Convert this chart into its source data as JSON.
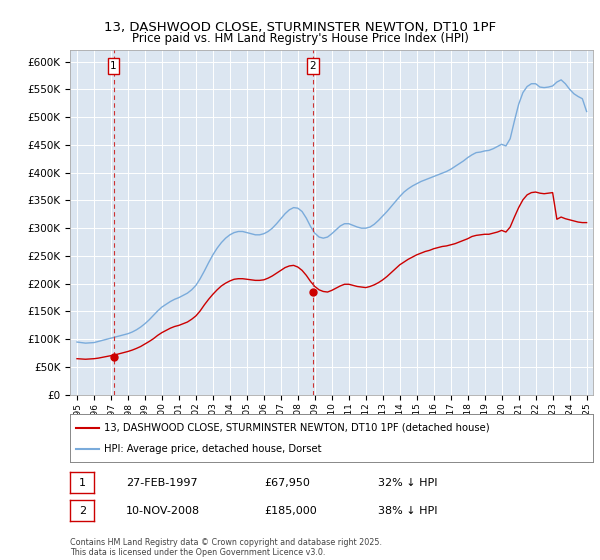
{
  "title": "13, DASHWOOD CLOSE, STURMINSTER NEWTON, DT10 1PF",
  "subtitle": "Price paid vs. HM Land Registry's House Price Index (HPI)",
  "ylim": [
    0,
    620000
  ],
  "yticks": [
    0,
    50000,
    100000,
    150000,
    200000,
    250000,
    300000,
    350000,
    400000,
    450000,
    500000,
    550000,
    600000
  ],
  "ytick_labels": [
    "£0",
    "£50K",
    "£100K",
    "£150K",
    "£200K",
    "£250K",
    "£300K",
    "£350K",
    "£400K",
    "£450K",
    "£500K",
    "£550K",
    "£600K"
  ],
  "xlim_start": 1994.6,
  "xlim_end": 2025.4,
  "plot_bg_color": "#dce6f1",
  "grid_color": "#ffffff",
  "sale1_x": 1997.15,
  "sale1_y": 67950,
  "sale1_label": "1",
  "sale1_date": "27-FEB-1997",
  "sale1_price": "£67,950",
  "sale1_hpi": "32% ↓ HPI",
  "sale2_x": 2008.87,
  "sale2_y": 185000,
  "sale2_label": "2",
  "sale2_date": "10-NOV-2008",
  "sale2_price": "£185,000",
  "sale2_hpi": "38% ↓ HPI",
  "line1_color": "#cc0000",
  "line2_color": "#7aabdb",
  "marker_color": "#cc0000",
  "dashed_color": "#cc3333",
  "legend1": "13, DASHWOOD CLOSE, STURMINSTER NEWTON, DT10 1PF (detached house)",
  "legend2": "HPI: Average price, detached house, Dorset",
  "footer": "Contains HM Land Registry data © Crown copyright and database right 2025.\nThis data is licensed under the Open Government Licence v3.0.",
  "hpi_y": [
    95000,
    94000,
    93000,
    93500,
    94000,
    96000,
    98000,
    100000,
    102000,
    104000,
    106000,
    108000,
    110000,
    113000,
    117000,
    122000,
    128000,
    135000,
    143000,
    151000,
    158000,
    163000,
    168000,
    172000,
    175000,
    179000,
    183000,
    189000,
    197000,
    209000,
    223000,
    238000,
    252000,
    264000,
    274000,
    282000,
    288000,
    292000,
    294000,
    294000,
    292000,
    290000,
    288000,
    288000,
    290000,
    294000,
    300000,
    308000,
    317000,
    326000,
    333000,
    337000,
    336000,
    330000,
    318000,
    303000,
    291000,
    284000,
    282000,
    284000,
    290000,
    297000,
    304000,
    308000,
    308000,
    305000,
    302000,
    300000,
    300000,
    302000,
    307000,
    314000,
    322000,
    330000,
    339000,
    348000,
    357000,
    365000,
    371000,
    376000,
    380000,
    384000,
    387000,
    390000,
    393000,
    396000,
    399000,
    402000,
    406000,
    411000,
    416000,
    421000,
    427000,
    432000,
    436000,
    437000,
    439000,
    440000,
    443000,
    447000,
    451000,
    448000,
    461000,
    493000,
    523000,
    544000,
    555000,
    560000,
    560000,
    554000,
    553000,
    554000,
    556000,
    563000,
    567000,
    560000,
    550000,
    542000,
    537000,
    533000,
    510000
  ],
  "prop_y": [
    65000,
    64500,
    64000,
    64500,
    65000,
    66000,
    67500,
    69000,
    70500,
    72000,
    74000,
    76000,
    78000,
    80500,
    83500,
    87000,
    91500,
    96000,
    101000,
    107000,
    112000,
    116000,
    120000,
    123000,
    125000,
    128000,
    131000,
    136000,
    142000,
    151000,
    162000,
    172000,
    181000,
    189000,
    196000,
    201000,
    205000,
    208000,
    209000,
    209000,
    208000,
    207000,
    206000,
    206000,
    207000,
    210000,
    214000,
    219000,
    224000,
    229000,
    232000,
    233000,
    230000,
    224000,
    215000,
    204000,
    195000,
    189000,
    186000,
    185000,
    188000,
    192000,
    196000,
    199000,
    199000,
    197000,
    195000,
    194000,
    193000,
    195000,
    198000,
    202000,
    207000,
    213000,
    220000,
    227000,
    234000,
    239000,
    244000,
    248000,
    252000,
    255000,
    258000,
    260000,
    263000,
    265000,
    267000,
    268000,
    270000,
    272000,
    275000,
    278000,
    281000,
    285000,
    287000,
    288000,
    289000,
    289000,
    291000,
    293000,
    296000,
    293000,
    302000,
    320000,
    337000,
    351000,
    360000,
    364000,
    365000,
    363000,
    362000,
    363000,
    364000,
    316000,
    320000,
    317000,
    315000,
    313000,
    311000,
    310000,
    310000
  ]
}
